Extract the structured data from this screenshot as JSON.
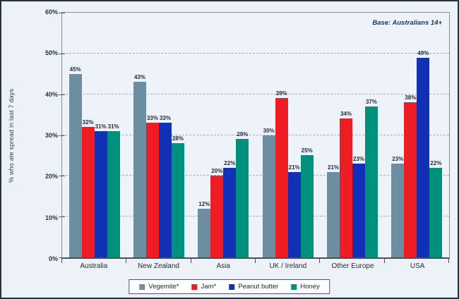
{
  "base_note": "Base: Australians 14+",
  "colors": {
    "background": "#ECF2F8",
    "plot_background": "#EDF3F9",
    "frame_border": "#27313F",
    "gridline": "#ACACAC",
    "axis": "#4B4F55"
  },
  "chart_data": {
    "type": "bar",
    "title": "",
    "ylabel": "% who ate spread in last 7 days",
    "xlabel": "",
    "ylim": [
      0,
      60
    ],
    "ytick_step": 10,
    "ytick_labels": [
      "0%",
      "10%",
      "20%",
      "30%",
      "40%",
      "50%",
      "60%"
    ],
    "grid": "horizontal-dashed",
    "legend_position": "bottom-center",
    "value_label_suffix": "%",
    "categories": [
      "Australia",
      "New Zealand",
      "Asia",
      "UK / Ireland",
      "Other Europe",
      "USA"
    ],
    "series": [
      {
        "name": "Vegemite*",
        "color": "#6D8EA0",
        "values": [
          45,
          43,
          12,
          30,
          21,
          23
        ]
      },
      {
        "name": "Jam*",
        "color": "#EE1C23",
        "values": [
          32,
          33,
          20,
          39,
          34,
          38
        ]
      },
      {
        "name": "Peanut butter",
        "color": "#1130B5",
        "values": [
          31,
          33,
          22,
          21,
          23,
          49
        ]
      },
      {
        "name": "Honey",
        "color": "#00917C",
        "values": [
          31,
          28,
          29,
          25,
          37,
          22
        ]
      }
    ]
  }
}
